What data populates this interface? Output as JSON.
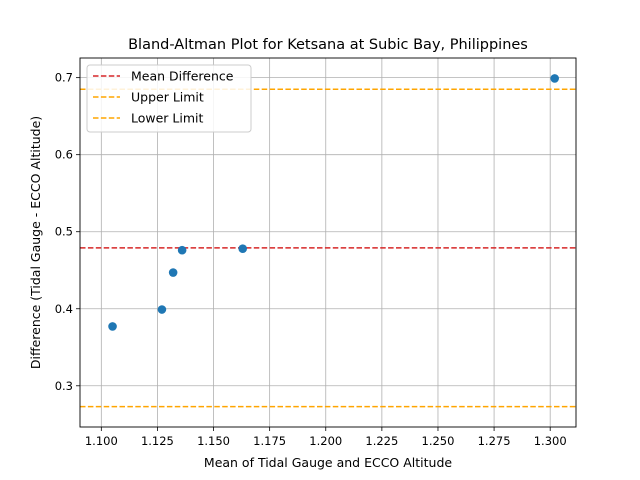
{
  "chart_data": {
    "type": "scatter",
    "title": "Bland-Altman Plot for Ketsana at Subic Bay, Philippines",
    "xlabel": "Mean of Tidal Gauge and ECCO Altitude",
    "ylabel": "Difference (Tidal Gauge - ECCO Altitude)",
    "xlim": [
      1.0905,
      1.3115
    ],
    "ylim": [
      0.2465,
      0.7255
    ],
    "grid": true,
    "legend_position": "upper-left",
    "x_ticks": [
      {
        "value": 1.1,
        "label": "1.100"
      },
      {
        "value": 1.125,
        "label": "1.125"
      },
      {
        "value": 1.15,
        "label": "1.150"
      },
      {
        "value": 1.175,
        "label": "1.175"
      },
      {
        "value": 1.2,
        "label": "1.200"
      },
      {
        "value": 1.225,
        "label": "1.225"
      },
      {
        "value": 1.25,
        "label": "1.250"
      },
      {
        "value": 1.275,
        "label": "1.275"
      },
      {
        "value": 1.3,
        "label": "1.300"
      }
    ],
    "y_ticks": [
      {
        "value": 0.3,
        "label": "0.3"
      },
      {
        "value": 0.4,
        "label": "0.4"
      },
      {
        "value": 0.5,
        "label": "0.5"
      },
      {
        "value": 0.6,
        "label": "0.6"
      },
      {
        "value": 0.7,
        "label": "0.7"
      }
    ],
    "series": [
      {
        "color": "#1f77b4",
        "points": [
          {
            "x": 1.105,
            "y": 0.377
          },
          {
            "x": 1.127,
            "y": 0.399
          },
          {
            "x": 1.132,
            "y": 0.447
          },
          {
            "x": 1.136,
            "y": 0.476
          },
          {
            "x": 1.163,
            "y": 0.478
          },
          {
            "x": 1.302,
            "y": 0.699
          }
        ]
      }
    ],
    "reference_lines": [
      {
        "name": "Mean Difference",
        "y": 0.479,
        "color": "#d62728"
      },
      {
        "name": "Upper Limit",
        "y": 0.685,
        "color": "#ffa500"
      },
      {
        "name": "Lower Limit",
        "y": 0.273,
        "color": "#ffa500"
      }
    ]
  }
}
